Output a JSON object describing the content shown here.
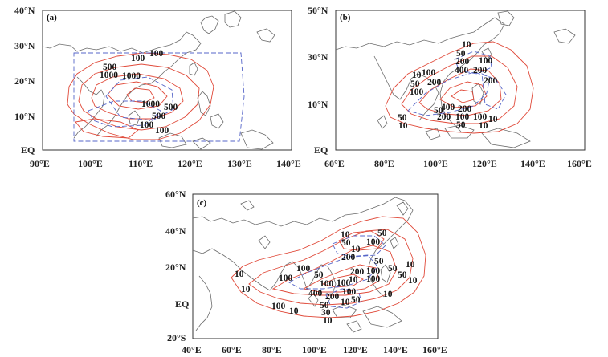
{
  "panels": [
    {
      "id": "a",
      "letter": "(a)",
      "lat_ticks": [
        "40°N",
        "30°N",
        "20°N",
        "10°N",
        "EQ"
      ],
      "lon_ticks": [
        "90°E",
        "100°E",
        "110°E",
        "120°E",
        "130°E",
        "140°E"
      ],
      "lon_range": [
        90,
        140
      ],
      "lat_range": [
        0,
        40
      ],
      "contour_labels": [
        "100",
        "100",
        "500",
        "1000",
        "1000",
        "500",
        "500",
        "100",
        "100"
      ]
    },
    {
      "id": "b",
      "letter": "(b)",
      "lat_ticks": [
        "50°N",
        "30°N",
        "10°N",
        "EQ"
      ],
      "lon_ticks": [
        "60°E",
        "80°E",
        "100°E",
        "120°E",
        "140°E",
        "160°E"
      ],
      "lon_range": [
        60,
        160
      ],
      "lat_range": [
        0,
        50
      ],
      "contour_labels": [
        "10",
        "50",
        "200",
        "100",
        "400",
        "200",
        "100",
        "10",
        "50",
        "200",
        "100",
        "200",
        "400",
        "200",
        "50",
        "50",
        "200",
        "100",
        "100",
        "10",
        "10",
        "50",
        "10"
      ]
    },
    {
      "id": "c",
      "letter": "(c)",
      "lat_ticks": [
        "60°N",
        "40°N",
        "20°N",
        "EQ",
        "20°S"
      ],
      "lon_ticks": [
        "40°E",
        "60°E",
        "80°E",
        "100°E",
        "120°E",
        "140°E",
        "160°E"
      ],
      "lon_range": [
        40,
        160
      ],
      "lat_range": [
        -20,
        60
      ],
      "contour_labels": [
        "10",
        "50",
        "50",
        "100",
        "10",
        "200",
        "50",
        "100",
        "10",
        "50",
        "10",
        "200",
        "100",
        "10",
        "100",
        "50",
        "100",
        "50",
        "100",
        "10",
        "400",
        "100",
        "10",
        "200",
        "100",
        "10",
        "100",
        "50",
        "10",
        "30",
        "10"
      ]
    }
  ],
  "colors": {
    "contour_red": "#e04a3a",
    "contour_blue": "#5565c8",
    "coastline": "#6b6b6b"
  }
}
